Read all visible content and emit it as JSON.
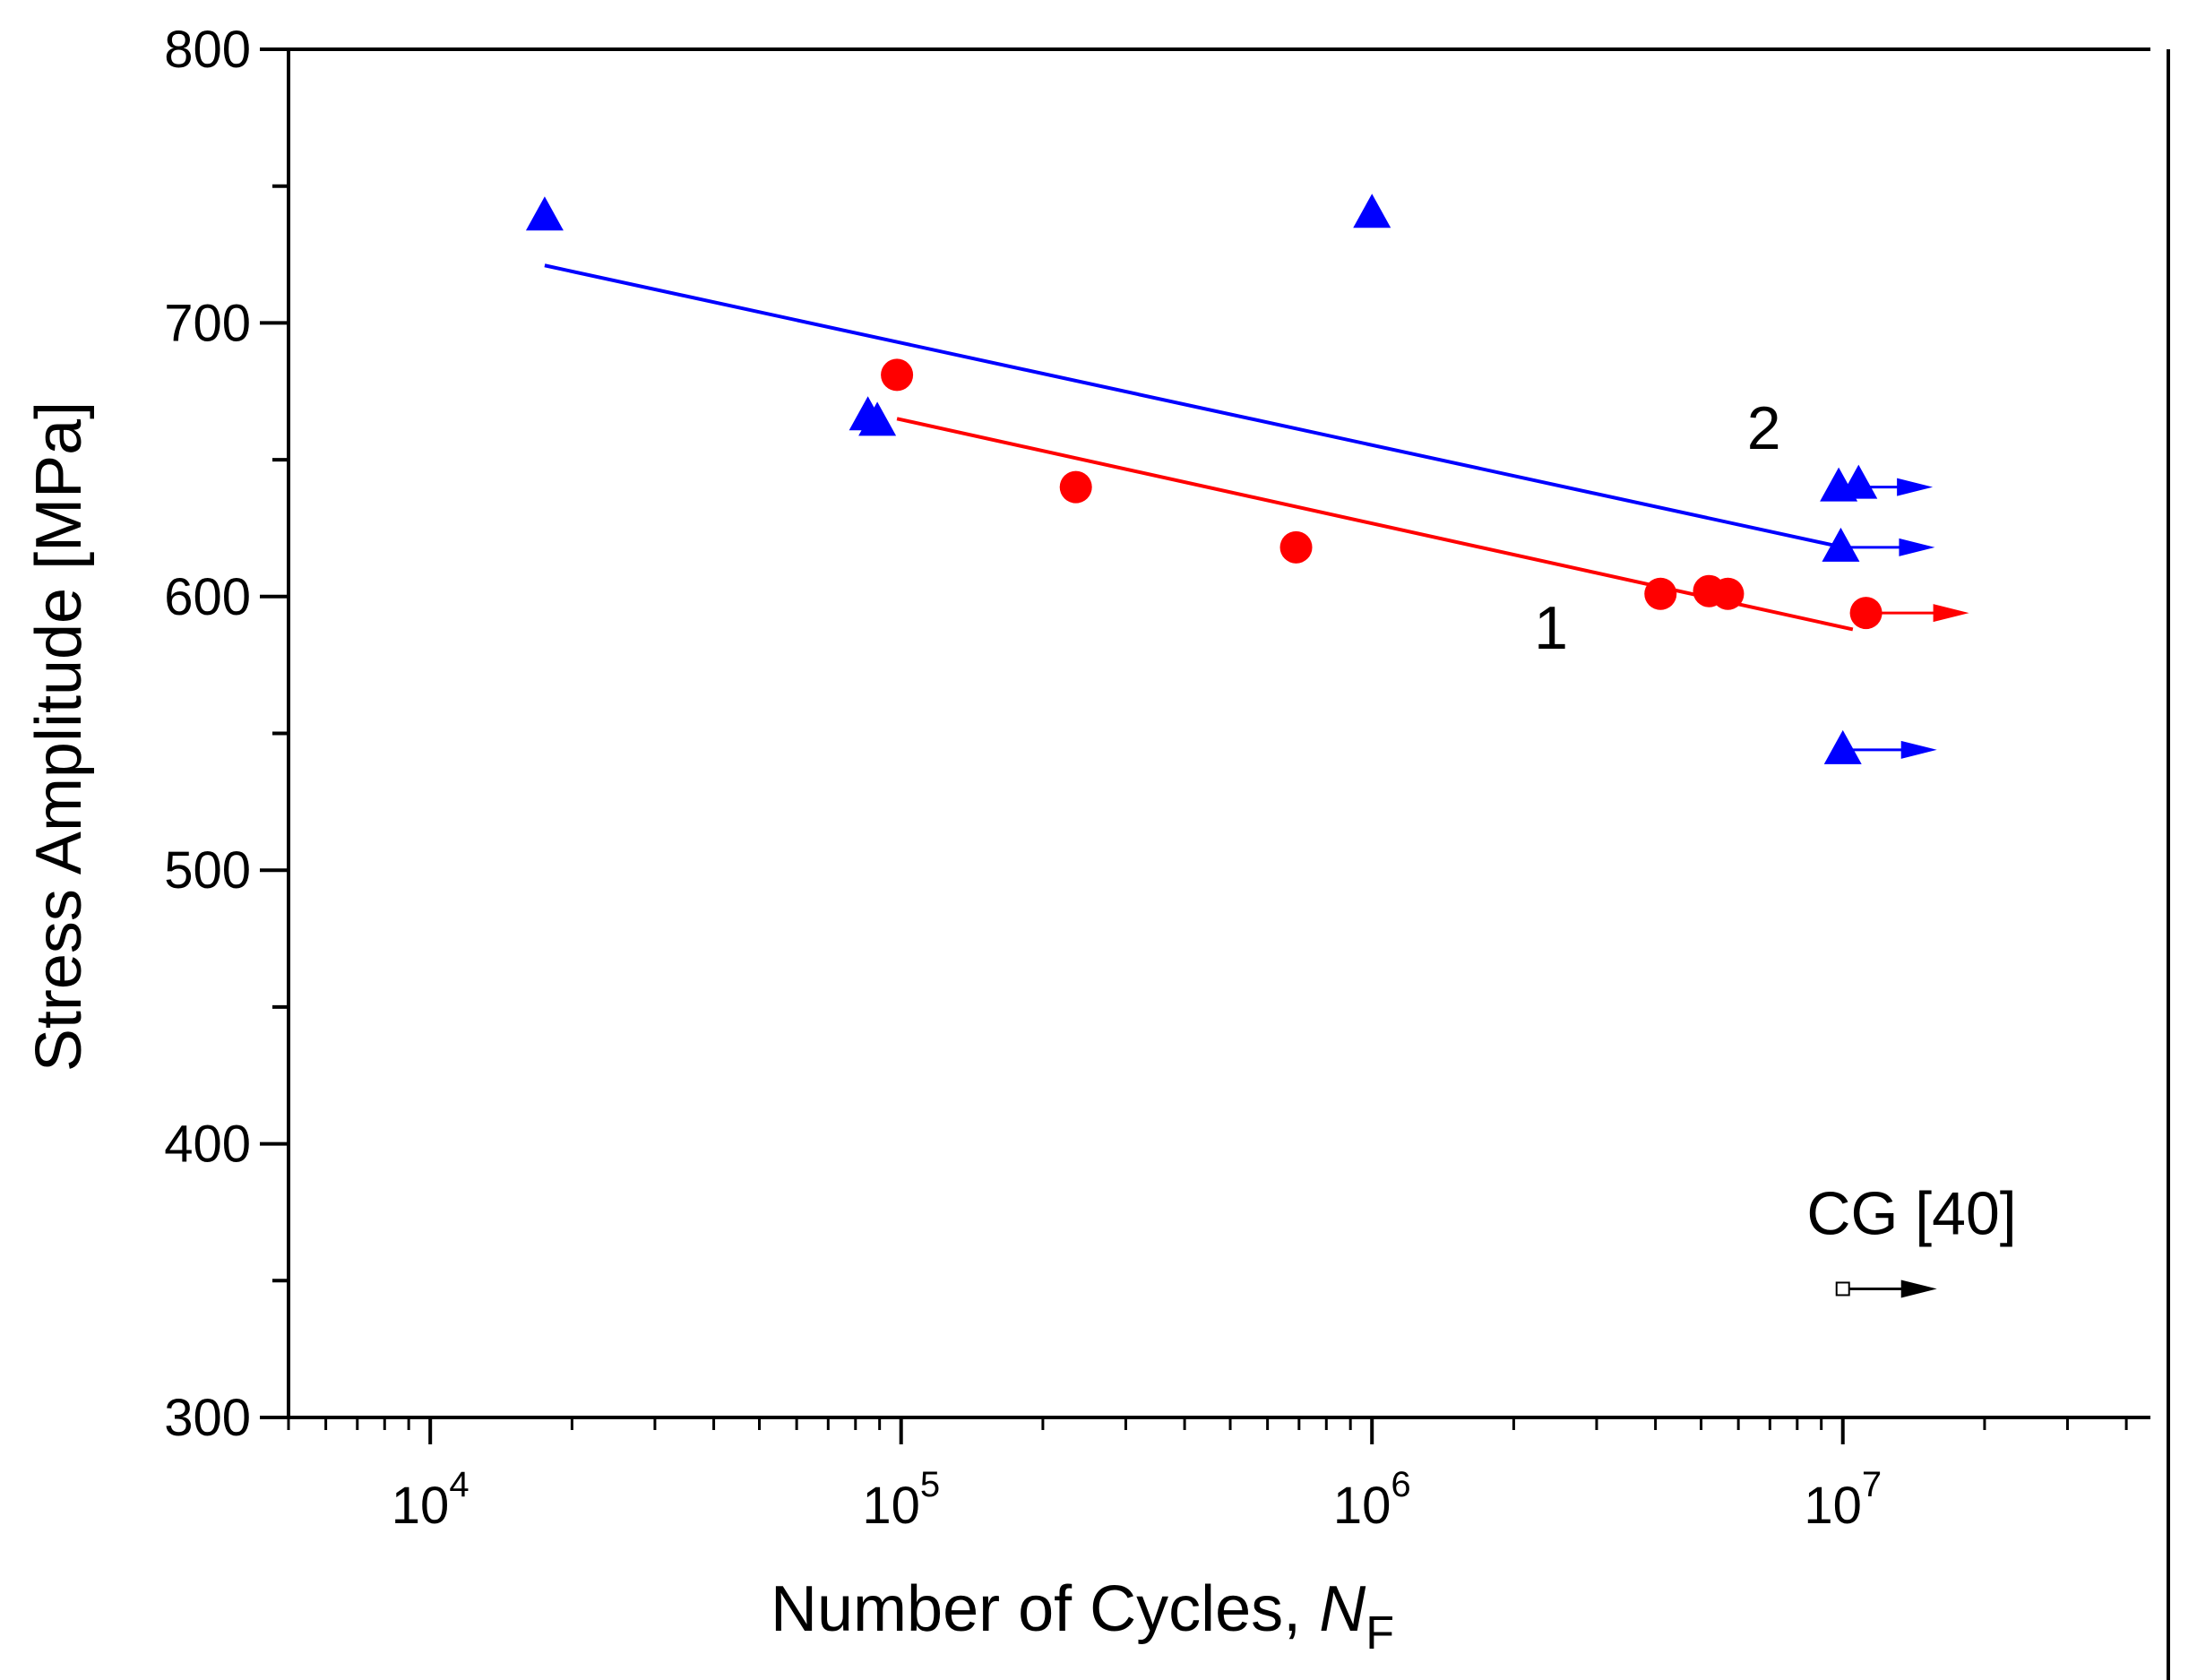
{
  "chart_data": {
    "type": "scatter",
    "title": "",
    "xlabel": "Number of Cycles, ",
    "xlabel_italic": "N",
    "xlabel_sub": "F",
    "ylabel": "Stress Amplitude [MPa]",
    "xscale": "log",
    "xlim": [
      5000,
      45000000
    ],
    "ylim": [
      300,
      800
    ],
    "x_ticks": [
      {
        "value": 10000,
        "base": "10",
        "exp": "4"
      },
      {
        "value": 100000,
        "base": "10",
        "exp": "5"
      },
      {
        "value": 1000000,
        "base": "10",
        "exp": "6"
      },
      {
        "value": 10000000,
        "base": "10",
        "exp": "7"
      }
    ],
    "y_ticks": [
      {
        "value": 300,
        "label": "300"
      },
      {
        "value": 400,
        "label": "400"
      },
      {
        "value": 500,
        "label": "500"
      },
      {
        "value": 600,
        "label": "600"
      },
      {
        "value": 700,
        "label": "700"
      },
      {
        "value": 800,
        "label": "800"
      }
    ],
    "grid": false,
    "series": [
      {
        "name": "1",
        "marker": "circle",
        "color": "#ff0000",
        "points": [
          {
            "x": 98000,
            "y": 681
          },
          {
            "x": 235000,
            "y": 640
          },
          {
            "x": 690000,
            "y": 618
          },
          {
            "x": 4100000,
            "y": 601
          },
          {
            "x": 5200000,
            "y": 602
          },
          {
            "x": 5700000,
            "y": 601
          },
          {
            "x": 11200000,
            "y": 594,
            "runout": true
          }
        ],
        "fit": {
          "x": [
            98000,
            10500000
          ],
          "y": [
            665,
            588
          ]
        }
      },
      {
        "name": "2",
        "marker": "triangle",
        "color": "#0000ff",
        "points": [
          {
            "x": 17500,
            "y": 739
          },
          {
            "x": 1000000,
            "y": 740
          },
          {
            "x": 85000,
            "y": 666
          },
          {
            "x": 89000,
            "y": 664
          },
          {
            "x": 9800000,
            "y": 640,
            "runout": true
          },
          {
            "x": 10800000,
            "y": 641
          },
          {
            "x": 9900000,
            "y": 618,
            "runout": true
          },
          {
            "x": 10000000,
            "y": 544,
            "runout": true
          }
        ],
        "fit": {
          "x": [
            17500,
            10000000
          ],
          "y": [
            721,
            618
          ]
        }
      },
      {
        "name": "CG [40]",
        "marker": "square",
        "color": "#000000",
        "points": [
          {
            "x": 10000000,
            "y": 347,
            "runout": true
          }
        ]
      }
    ],
    "annotations": [
      {
        "text": "1",
        "x": 2400000,
        "y": 581
      },
      {
        "text": "2",
        "x": 6800000,
        "y": 654
      },
      {
        "text": "CG [40]",
        "x": 14000000,
        "y": 367
      }
    ]
  }
}
